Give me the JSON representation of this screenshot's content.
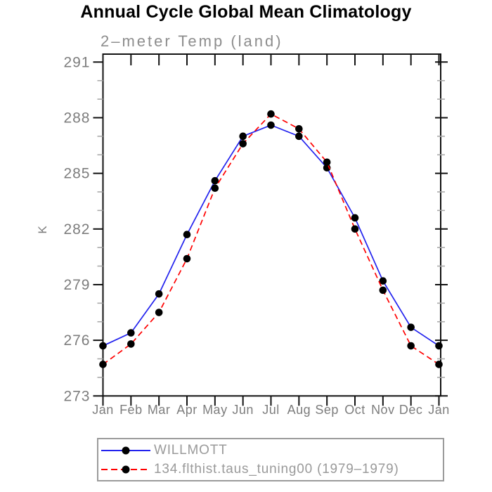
{
  "title": "Annual Cycle Global Mean Climatology",
  "subtitle": "2–meter Temp (land)",
  "chart_data": {
    "type": "line",
    "x_categories": [
      "Jan",
      "Feb",
      "Mar",
      "Apr",
      "May",
      "Jun",
      "Jul",
      "Aug",
      "Sep",
      "Oct",
      "Nov",
      "Dec",
      "Jan"
    ],
    "ylabel": "K",
    "ylim": [
      273,
      291.5
    ],
    "yticks": [
      273,
      276,
      279,
      282,
      285,
      288,
      291
    ],
    "y_minor_step": 1,
    "grid": false,
    "legend_position": "below-axis-boxed",
    "marker": "filled-circle",
    "marker_color": "#000000",
    "series": [
      {
        "name": "WILLMOTT",
        "color": "#2222ee",
        "style": "solid",
        "values": [
          275.7,
          276.4,
          278.5,
          281.7,
          284.6,
          287.0,
          287.6,
          287.0,
          285.3,
          282.6,
          279.2,
          276.7,
          275.7
        ]
      },
      {
        "name": "134.flthist.taus_tuning00 (1979–1979)",
        "color": "#ff0000",
        "style": "dashed",
        "values": [
          274.7,
          275.8,
          277.5,
          280.4,
          284.2,
          286.6,
          288.2,
          287.4,
          285.6,
          282.0,
          278.7,
          275.7,
          274.7
        ]
      }
    ]
  },
  "colors": {
    "axis": "#111111",
    "minor_tick": "#aaaaaa",
    "tick_label": "#7d7d7d",
    "legend_text": "#9a9a9a",
    "title_text": "#000000",
    "subtitle_text": "#8d8d8d"
  }
}
